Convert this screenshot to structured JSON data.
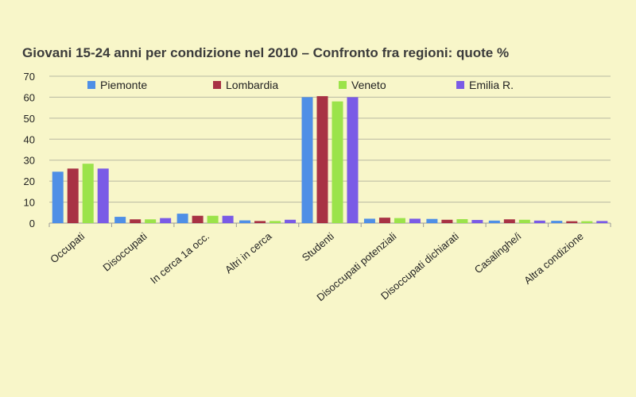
{
  "chart_data": {
    "type": "bar",
    "title": "Giovani 15-24 anni per condizione nel 2010 – Confronto fra regioni: quote %",
    "xlabel": "",
    "ylabel": "",
    "ylim": [
      0,
      70
    ],
    "yticks": [
      0,
      10,
      20,
      30,
      40,
      50,
      60,
      70
    ],
    "grid": true,
    "legend_position": "top",
    "categories": [
      "Occupati",
      "Disoccupati",
      "In cerca 1a occ.",
      "Altri in cerca",
      "Studenti",
      "Disoccupati potenziali",
      "Disoccupati dichiarati",
      "Casalinghe/i",
      "Altra condizione"
    ],
    "series": [
      {
        "name": "Piemonte",
        "color": "#4f8fe6",
        "values": [
          24.5,
          3.0,
          4.5,
          1.3,
          60.0,
          2.1,
          2.0,
          1.2,
          1.1
        ]
      },
      {
        "name": "Lombardia",
        "color": "#a83244",
        "values": [
          26.0,
          1.8,
          3.5,
          1.0,
          60.5,
          2.6,
          1.6,
          1.8,
          0.9
        ]
      },
      {
        "name": "Veneto",
        "color": "#9be34a",
        "values": [
          28.3,
          1.8,
          3.5,
          1.0,
          58.0,
          2.4,
          1.9,
          1.6,
          0.9
        ]
      },
      {
        "name": "Emilia R.",
        "color": "#7a5be6",
        "values": [
          26.0,
          2.4,
          3.5,
          1.6,
          60.0,
          2.1,
          1.5,
          1.2,
          1.0
        ]
      }
    ]
  }
}
